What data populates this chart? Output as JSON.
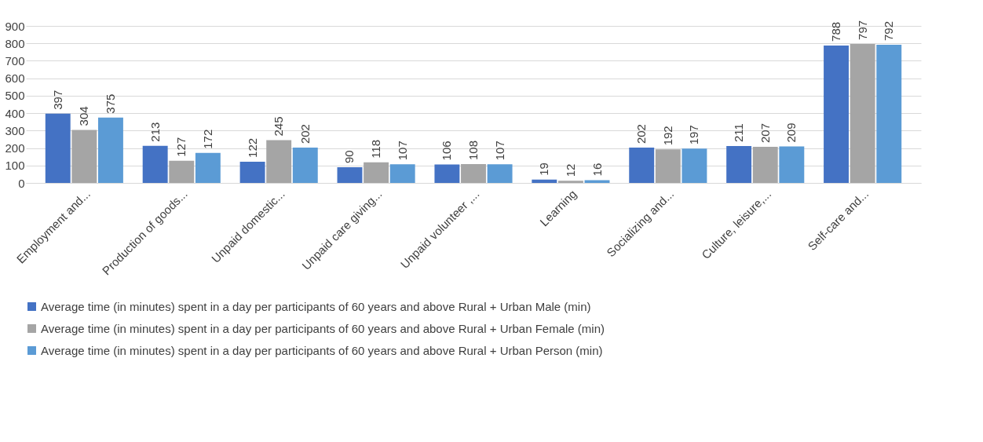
{
  "chart_data": {
    "type": "bar",
    "categories": [
      "Employment and...",
      "Production of goods...",
      "Unpaid domestic...",
      "Unpaid care giving...",
      "Unpaid volunteer ,...",
      "Learning",
      "Socializing and...",
      "Culture, leisure,...",
      "Self-care and..."
    ],
    "series": [
      {
        "name": "Average time (in minutes) spent in a day per participants of 60 years and above Rural + Urban Male (min)",
        "color": "#4472c4",
        "values": [
          397,
          213,
          122,
          90,
          106,
          19,
          202,
          211,
          788
        ]
      },
      {
        "name": "Average time (in minutes) spent in a day per participants of 60 years and above Rural + Urban Female (min)",
        "color": "#a5a5a5",
        "values": [
          304,
          127,
          245,
          118,
          108,
          12,
          192,
          207,
          797
        ]
      },
      {
        "name": "Average time (in minutes) spent in a day per participants of 60 years and above Rural + Urban Person (min)",
        "color": "#5b9bd5",
        "values": [
          375,
          172,
          202,
          107,
          107,
          16,
          197,
          209,
          792
        ]
      }
    ],
    "ylim": [
      0,
      900
    ],
    "yticks": [
      0,
      100,
      200,
      300,
      400,
      500,
      600,
      700,
      800,
      900
    ],
    "grid": "y",
    "legend": "bottom",
    "data_labels": true
  }
}
